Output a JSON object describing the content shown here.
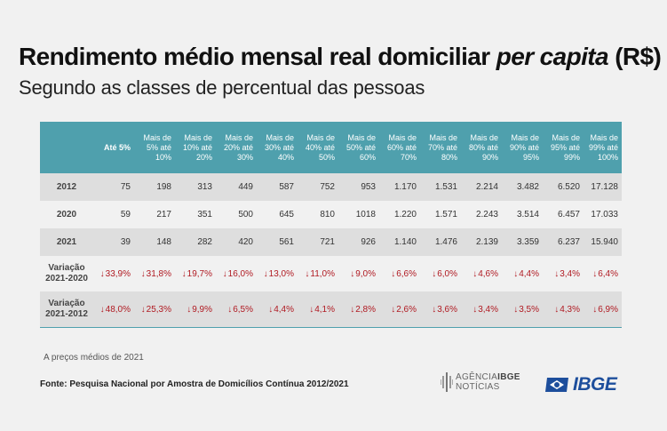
{
  "title": {
    "main": "Rendimento médio mensal real domiciliar",
    "emphasis": "per capita",
    "unit": "(R$)"
  },
  "subtitle": "Segundo as classes de percentual das pessoas",
  "table": {
    "columns": [
      "Até 5%",
      "Mais de 5% até 10%",
      "Mais de 10% até 20%",
      "Mais de 20% até 30%",
      "Mais de 30% até 40%",
      "Mais de 40% até 50%",
      "Mais de 50% até 60%",
      "Mais de 60% até 70%",
      "Mais de 70% até 80%",
      "Mais de 80% até 90%",
      "Mais de 90% até 95%",
      "Mais de 95% até 99%",
      "Mais de 99% até 100%"
    ],
    "rows": [
      {
        "label": "2012",
        "values": [
          "75",
          "198",
          "313",
          "449",
          "587",
          "752",
          "953",
          "1.170",
          "1.531",
          "2.214",
          "3.482",
          "6.520",
          "17.128"
        ]
      },
      {
        "label": "2020",
        "values": [
          "59",
          "217",
          "351",
          "500",
          "645",
          "810",
          "1018",
          "1.220",
          "1.571",
          "2.243",
          "3.514",
          "6.457",
          "17.033"
        ]
      },
      {
        "label": "2021",
        "values": [
          "39",
          "148",
          "282",
          "420",
          "561",
          "721",
          "926",
          "1.140",
          "1.476",
          "2.139",
          "3.359",
          "6.237",
          "15.940"
        ]
      }
    ],
    "variations": [
      {
        "label_line1": "Variação",
        "label_line2": "2021-2020",
        "values": [
          "33,9%",
          "31,8%",
          "19,7%",
          "16,0%",
          "13,0%",
          "11,0%",
          "9,0%",
          "6,6%",
          "6,0%",
          "4,6%",
          "4,4%",
          "3,4%",
          "6,4%"
        ]
      },
      {
        "label_line1": "Variação",
        "label_line2": "2021-2012",
        "values": [
          "48,0%",
          "25,3%",
          "9,9%",
          "6,5%",
          "4,4%",
          "4,1%",
          "2,8%",
          "2,6%",
          "3,6%",
          "3,4%",
          "3,5%",
          "4,3%",
          "6,9%"
        ]
      }
    ],
    "down_arrow": "↓"
  },
  "note": "A preços médios de 2021",
  "source": "Fonte: Pesquisa Nacional por Amostra de Domicílios Contínua 2012/2021",
  "logos": {
    "agencia_line1_a": "AGÊNCIA",
    "agencia_line1_b": "IBGE",
    "agencia_line2": "NOTÍCIAS",
    "ibge": "IBGE"
  },
  "colors": {
    "header": "#4fa0ad",
    "negative": "#b01a22",
    "ibge_blue": "#1d4e9c"
  }
}
